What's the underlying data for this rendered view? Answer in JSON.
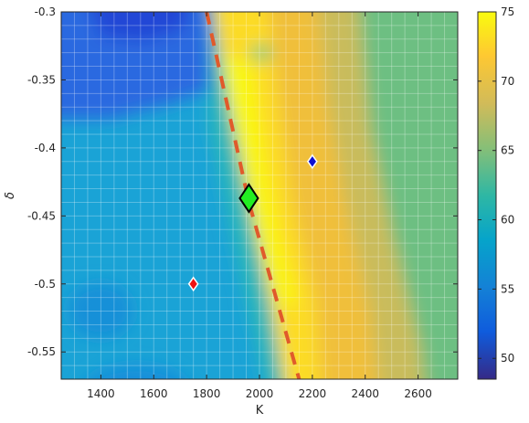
{
  "chart_data": {
    "type": "heatmap",
    "xlabel": "K",
    "ylabel": "δ",
    "x_range": [
      1250,
      2750
    ],
    "y_range": [
      -0.57,
      -0.3
    ],
    "x_ticks": [
      1400,
      1600,
      1800,
      2000,
      2200,
      2400,
      2600
    ],
    "y_ticks": [
      -0.3,
      -0.35,
      -0.4,
      -0.45,
      -0.5,
      -0.55
    ],
    "x_tick_labels": [
      "1400",
      "1600",
      "1800",
      "2000",
      "2200",
      "2400",
      "2600"
    ],
    "y_tick_labels": [
      "-0.3",
      "-0.35",
      "-0.4",
      "-0.45",
      "-0.5",
      "-0.55"
    ],
    "colorbar": {
      "range": [
        48.5,
        75
      ],
      "ticks": [
        50,
        55,
        60,
        65,
        70,
        75
      ],
      "tick_labels": [
        "50",
        "55",
        "60",
        "65",
        "70",
        "75"
      ],
      "colormap": "parula"
    },
    "grid": true,
    "dashed_line": {
      "color": "#e05a2b",
      "points": [
        [
          1800,
          -0.3
        ],
        [
          1960,
          -0.44
        ],
        [
          2150,
          -0.57
        ]
      ]
    },
    "markers": [
      {
        "k": 1960,
        "delta": -0.437,
        "color": "#22ee22",
        "size": "large"
      },
      {
        "k": 2200,
        "delta": -0.41,
        "color": "#1010d0",
        "size": "small"
      },
      {
        "k": 1750,
        "delta": -0.5,
        "color": "#ee1111",
        "size": "small"
      }
    ]
  }
}
